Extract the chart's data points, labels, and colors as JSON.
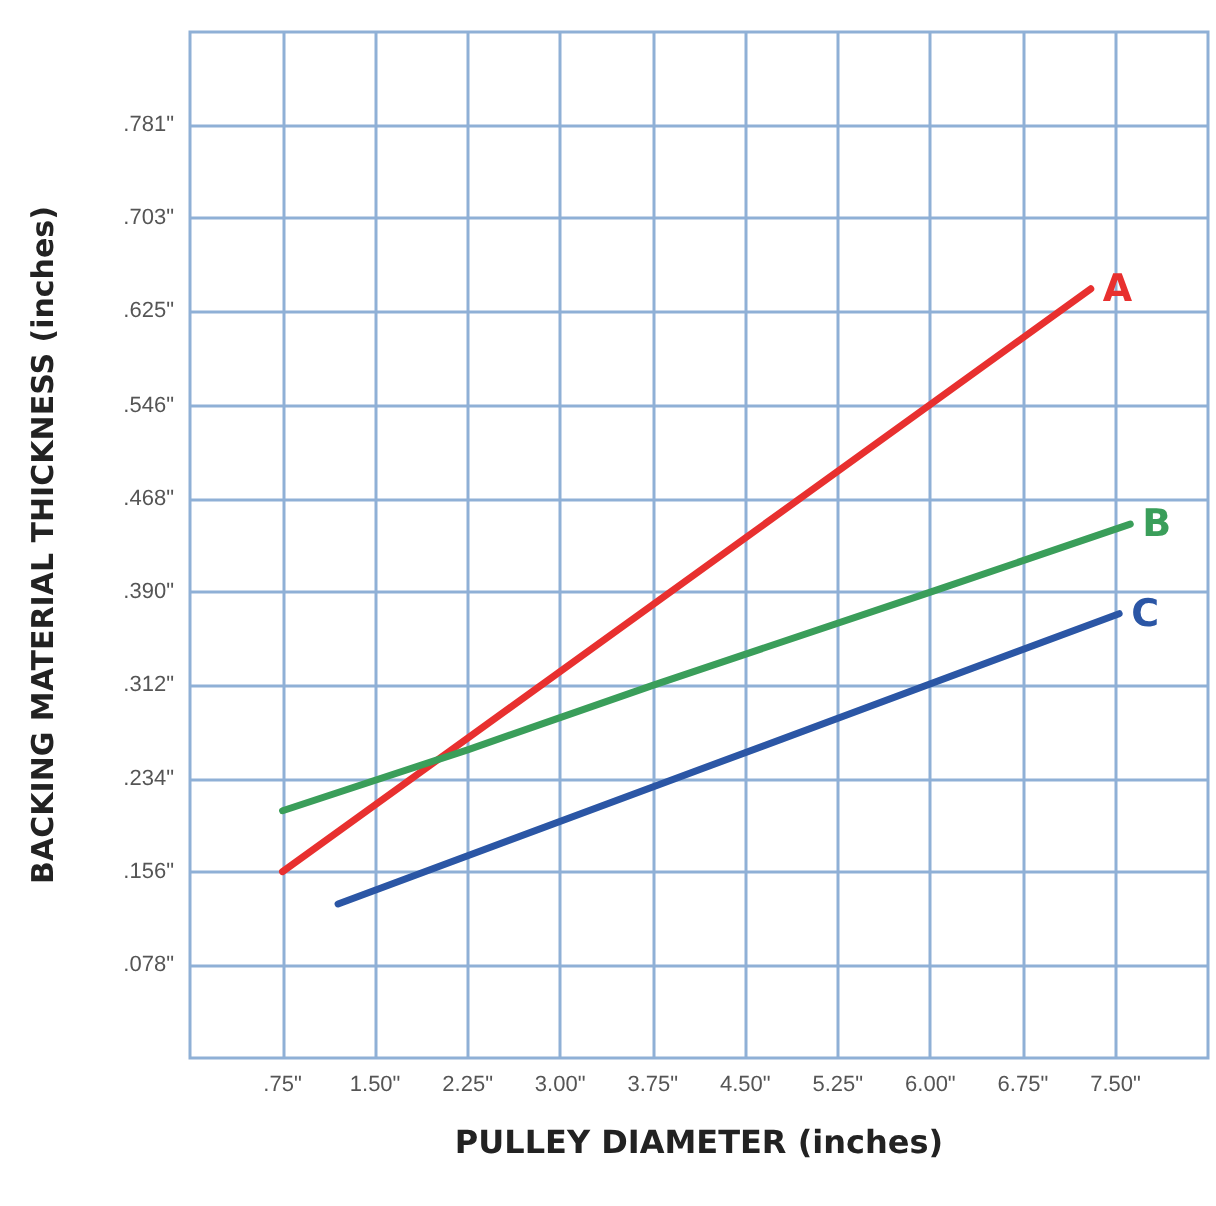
{
  "chart_data": {
    "type": "line",
    "xlabel": "PULLEY DIAMETER (inches)",
    "ylabel": "BACKING MATERIAL THICKNESS (inches)",
    "xlim": [
      0,
      8.25
    ],
    "ylim": [
      0,
      0.859
    ],
    "xticks": [
      {
        "value": 0.75,
        "label": ".75\""
      },
      {
        "value": 1.5,
        "label": "1.50\""
      },
      {
        "value": 2.25,
        "label": "2.25\""
      },
      {
        "value": 3,
        "label": "3.00\""
      },
      {
        "value": 3.75,
        "label": "3.75\""
      },
      {
        "value": 4.5,
        "label": "4.50\""
      },
      {
        "value": 5.25,
        "label": "5.25\""
      },
      {
        "value": 6,
        "label": "6.00\""
      },
      {
        "value": 6.75,
        "label": "6.75\""
      },
      {
        "value": 7.5,
        "label": "7.50\""
      }
    ],
    "yticks": [
      {
        "value": 0.078,
        "label": ".078\""
      },
      {
        "value": 0.156,
        "label": ".156\""
      },
      {
        "value": 0.234,
        "label": ".234\""
      },
      {
        "value": 0.312,
        "label": ".312\""
      },
      {
        "value": 0.39,
        "label": ".390\""
      },
      {
        "value": 0.468,
        "label": ".468\""
      },
      {
        "value": 0.546,
        "label": ".546\""
      },
      {
        "value": 0.625,
        "label": ".625\""
      },
      {
        "value": 0.703,
        "label": ".703\""
      },
      {
        "value": 0.781,
        "label": ".781\""
      }
    ],
    "grid": true,
    "legend": false,
    "marker": "none",
    "line_style": "solid",
    "series": [
      {
        "name": "A",
        "color": "#e8302f",
        "x": [
          0.75,
          7.3
        ],
        "values": [
          0.156,
          0.644
        ]
      },
      {
        "name": "B",
        "color": "#3a9e5a",
        "x": [
          0.75,
          2.25,
          3.75,
          6.0,
          7.62
        ],
        "values": [
          0.207,
          0.258,
          0.312,
          0.39,
          0.447
        ]
      },
      {
        "name": "C",
        "color": "#2b56a5",
        "x": [
          1.2,
          7.53
        ],
        "values": [
          0.129,
          0.372
        ]
      }
    ]
  }
}
